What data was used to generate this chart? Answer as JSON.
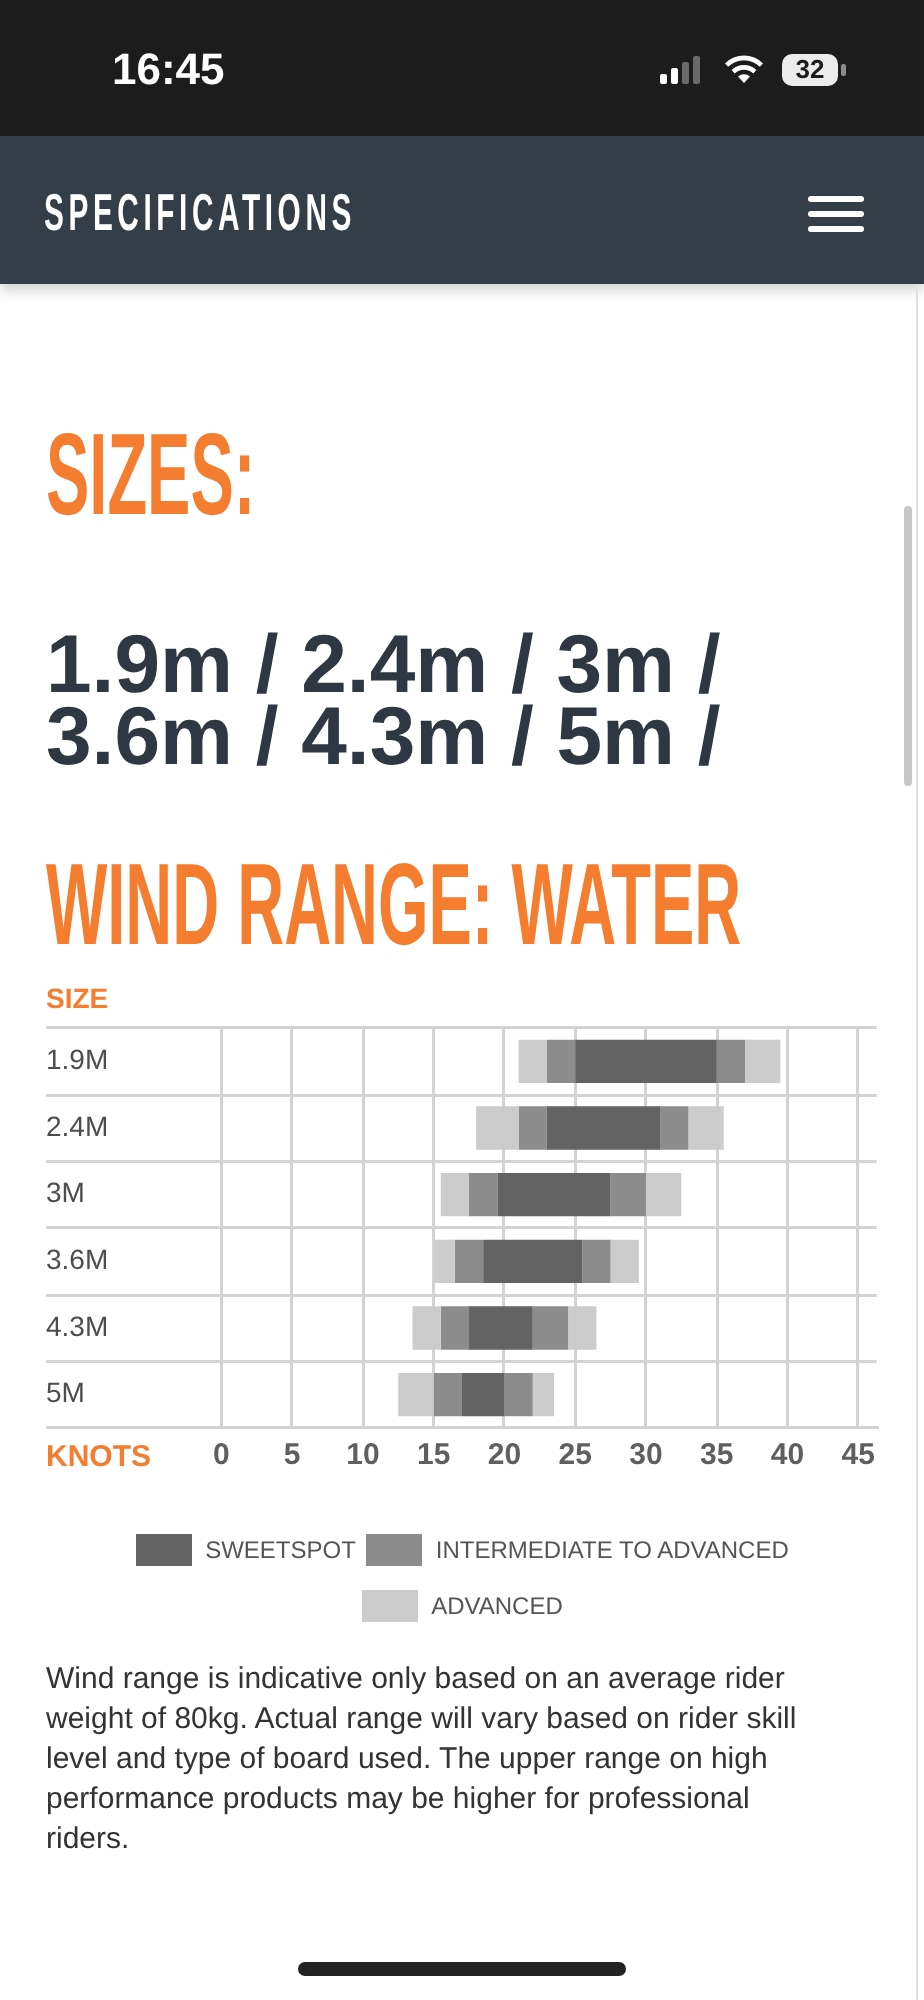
{
  "chart_data": {
    "type": "bar",
    "orientation": "horizontal",
    "title": "WIND RANGE: WATER",
    "xlabel": "KNOTS",
    "ylabel": "SIZE",
    "categories": [
      "1.9M",
      "2.4M",
      "3M",
      "3.6M",
      "4.3M",
      "5M"
    ],
    "series": [
      {
        "color": "#cccccc",
        "base": [
          21,
          18,
          15.5,
          15,
          13.5,
          12.5
        ],
        "values": [
          2,
          3,
          2,
          1.5,
          2,
          2.5
        ]
      },
      {
        "color": "#8c8c8c",
        "base": [
          23,
          21,
          17.5,
          16.5,
          15.5,
          15
        ],
        "values": [
          2,
          2,
          2,
          2,
          2,
          2
        ]
      },
      {
        "name": "SWEETSPOT",
        "color": "#636363",
        "base": [
          25,
          23,
          19.5,
          18.5,
          17.5,
          17
        ],
        "values": [
          10,
          8,
          8,
          7,
          4.5,
          3
        ]
      },
      {
        "name": "INTERMEDIATE TO ADVANCED",
        "color": "#8c8c8c",
        "base": [
          35,
          31,
          27.5,
          25.5,
          22,
          20
        ],
        "values": [
          2,
          2,
          2.5,
          2,
          2.5,
          2
        ]
      },
      {
        "name": "ADVANCED",
        "color": "#cccccc",
        "base": [
          37,
          33,
          30,
          27.5,
          24.5,
          22
        ],
        "values": [
          2.5,
          2.5,
          2.5,
          2,
          2,
          1.5
        ]
      }
    ],
    "xlim": [
      0,
      46.3
    ],
    "xticks": [
      0,
      5,
      10,
      15,
      20,
      25,
      30,
      35,
      40,
      45
    ],
    "grid": true,
    "legend": "bottom",
    "annotations": [
      "16:45",
      "32",
      "SPECIFICATIONS",
      "SIZES:",
      "1.9m / 2.4m / 3m / 3.6m / 4.3m / 5m /",
      "Wind range is indicative only based on an average rider weight of 80kg. Actual range will vary based on rider skill level and type of board used. The upper range on high performance products may be higher for professional riders."
    ]
  }
}
